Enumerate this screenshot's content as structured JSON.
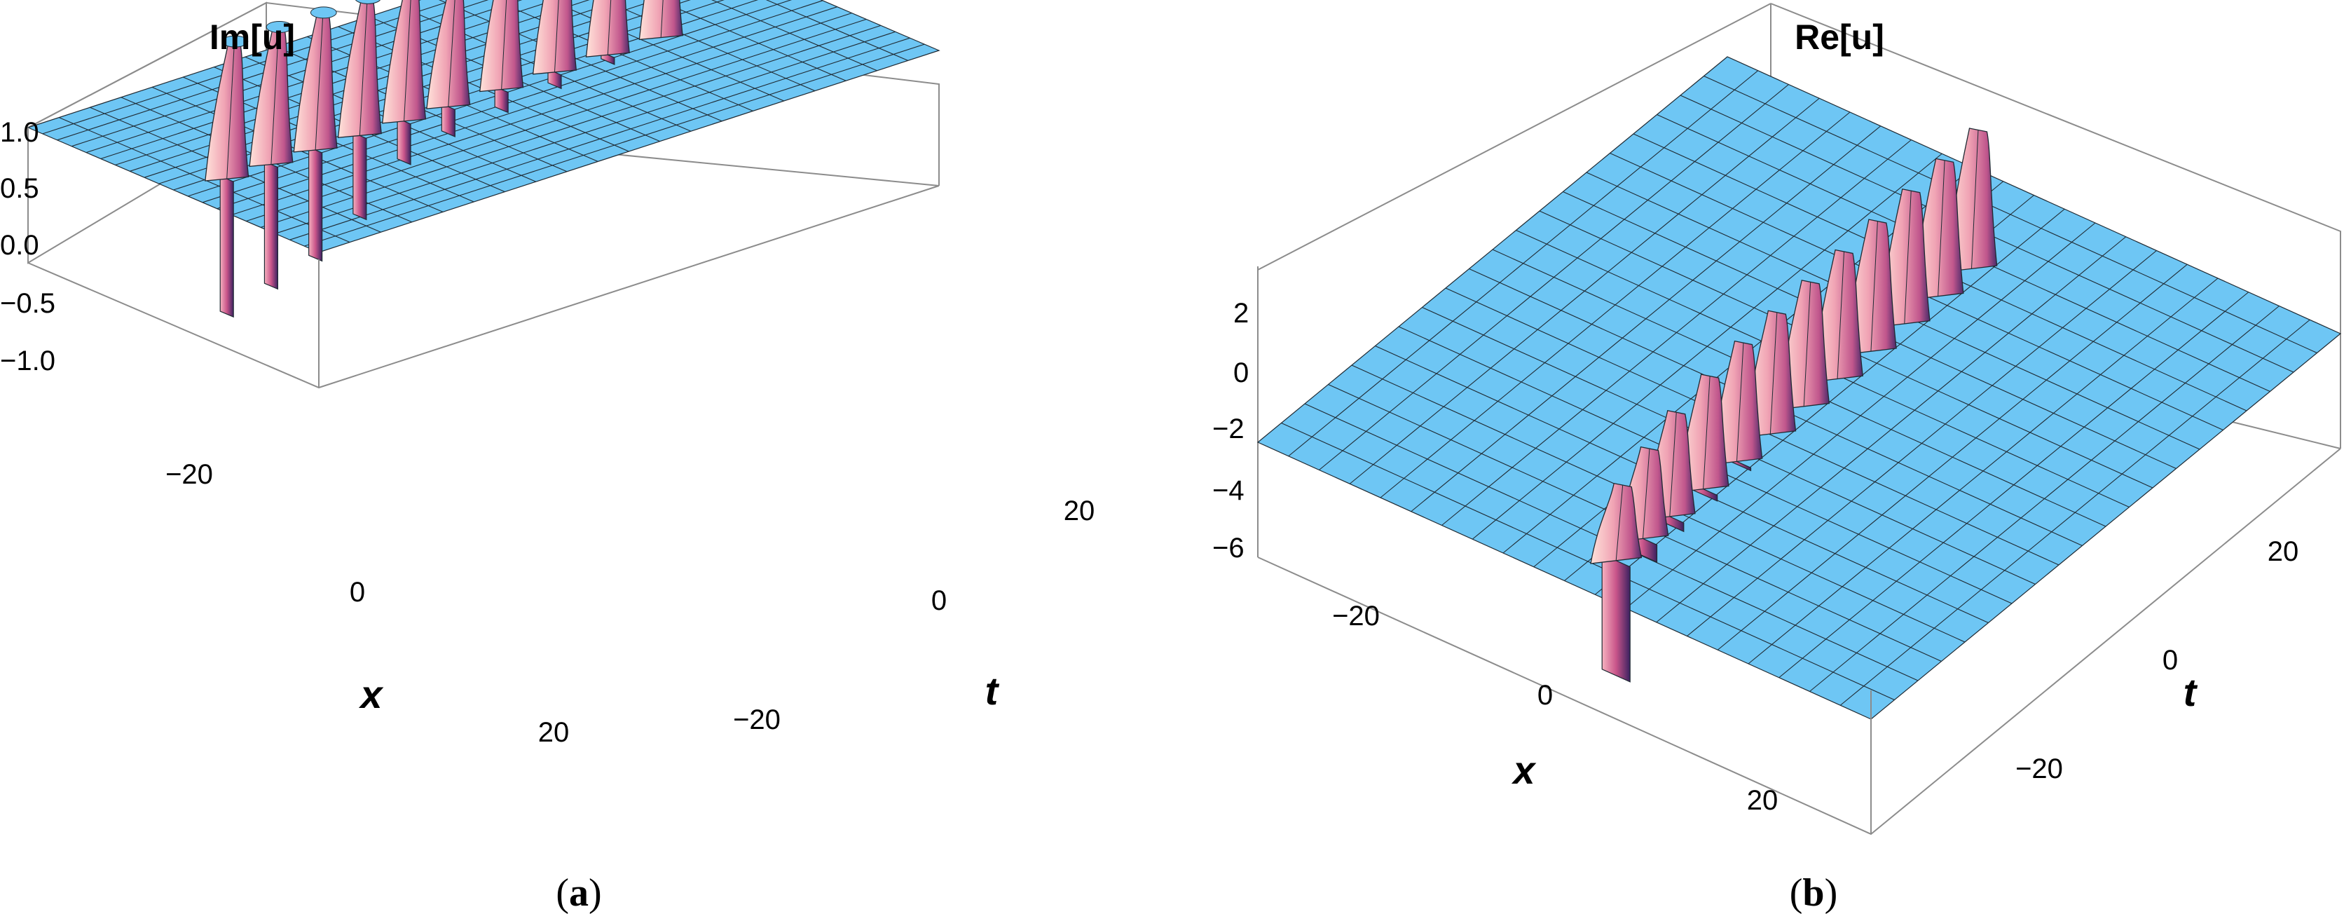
{
  "figure": {
    "panels": [
      {
        "id": "a",
        "label_prefix": "(",
        "label_letter": "a",
        "label_suffix": ")",
        "title": "Im[u]",
        "xlabel": "x",
        "ylabel": "t"
      },
      {
        "id": "b",
        "label_prefix": "(",
        "label_letter": "b",
        "label_suffix": ")",
        "title": "Re[u]",
        "xlabel": "x",
        "ylabel": "t"
      }
    ]
  },
  "colors": {
    "surface": "#6ec6f4",
    "mesh": "#1f2a33",
    "peak_light": "#ffd9cf",
    "peak_mid": "#e8879f",
    "peak_dark": "#4a2a6a",
    "box": "#8c8c8c"
  },
  "chart_data": [
    {
      "type": "surface3d",
      "title": "Im[u]",
      "xlabel": "x",
      "ylabel": "t",
      "zlabel": "",
      "xlim": [
        -35,
        35
      ],
      "ylim": [
        -35,
        35
      ],
      "zlim": [
        -1.0,
        1.0
      ],
      "x_ticks": [
        -20,
        0,
        20
      ],
      "y_ticks": [
        -20,
        0,
        20
      ],
      "z_ticks": [
        -1.0,
        -0.5,
        0.0,
        0.5,
        1.0
      ],
      "x_tick_labels": [
        "−20",
        "0",
        "20"
      ],
      "y_tick_labels": [
        "−20",
        "0",
        "20"
      ],
      "z_tick_labels": [
        "−1.0",
        "−0.5",
        "0.0",
        "0.5",
        "1.0"
      ],
      "baseline": 0.0,
      "peaks": [
        {
          "x": 2,
          "t": -29,
          "zmax": 1.0,
          "zmin": -1.0
        },
        {
          "x": 2,
          "t": -24,
          "zmax": 1.0,
          "zmin": -0.9
        },
        {
          "x": 2,
          "t": -19,
          "zmax": 1.0,
          "zmin": -0.8
        },
        {
          "x": 2,
          "t": -14,
          "zmax": 1.0,
          "zmin": -0.6
        },
        {
          "x": 2,
          "t": -9,
          "zmax": 1.0,
          "zmin": -0.3
        },
        {
          "x": 2,
          "t": -4,
          "zmax": 0.9,
          "zmin": -0.2
        },
        {
          "x": 2,
          "t": 2,
          "zmax": 1.0,
          "zmin": -0.15
        },
        {
          "x": 2,
          "t": 8,
          "zmax": 1.0,
          "zmin": -0.1
        },
        {
          "x": 2,
          "t": 14,
          "zmax": 1.0,
          "zmin": -0.05
        },
        {
          "x": 2,
          "t": 20,
          "zmax": 1.0,
          "zmin": 0.0
        }
      ]
    },
    {
      "type": "surface3d",
      "title": "Re[u]",
      "xlabel": "x",
      "ylabel": "t",
      "zlabel": "",
      "xlim": [
        -35,
        35
      ],
      "ylim": [
        -35,
        35
      ],
      "zlim": [
        -6,
        3
      ],
      "x_ticks": [
        -20,
        0,
        20
      ],
      "y_ticks": [
        -20,
        0,
        20
      ],
      "z_ticks": [
        -6,
        -4,
        -2,
        0,
        2
      ],
      "x_tick_labels": [
        "−20",
        "0",
        "20"
      ],
      "y_tick_labels": [
        "−20",
        "0",
        "20"
      ],
      "z_tick_labels": [
        "−6",
        "−4",
        "−2",
        "0",
        "2"
      ],
      "baseline": -2,
      "peaks": [
        {
          "x": 2,
          "t": -29,
          "zmax": 0.5,
          "zmin": -6
        },
        {
          "x": 2,
          "t": -25,
          "zmax": 1.0,
          "zmin": -2.6
        },
        {
          "x": 2,
          "t": -21,
          "zmax": 1.5,
          "zmin": -2.3
        },
        {
          "x": 2,
          "t": -16,
          "zmax": 1.8,
          "zmin": -2.2
        },
        {
          "x": 2,
          "t": -11,
          "zmax": 2.0,
          "zmin": -2.1
        },
        {
          "x": 2,
          "t": -6,
          "zmax": 2.1,
          "zmin": -2.0
        },
        {
          "x": 2,
          "t": -1,
          "zmax": 2.2,
          "zmin": -2.0
        },
        {
          "x": 2,
          "t": 4,
          "zmax": 2.3,
          "zmin": -2.0
        },
        {
          "x": 2,
          "t": 9,
          "zmax": 2.4,
          "zmin": -2.0
        },
        {
          "x": 2,
          "t": 14,
          "zmax": 2.5,
          "zmin": -2.0
        },
        {
          "x": 2,
          "t": 19,
          "zmax": 2.6,
          "zmin": -2.0
        },
        {
          "x": 2,
          "t": 24,
          "zmax": 2.7,
          "zmin": -2.0
        }
      ]
    }
  ]
}
